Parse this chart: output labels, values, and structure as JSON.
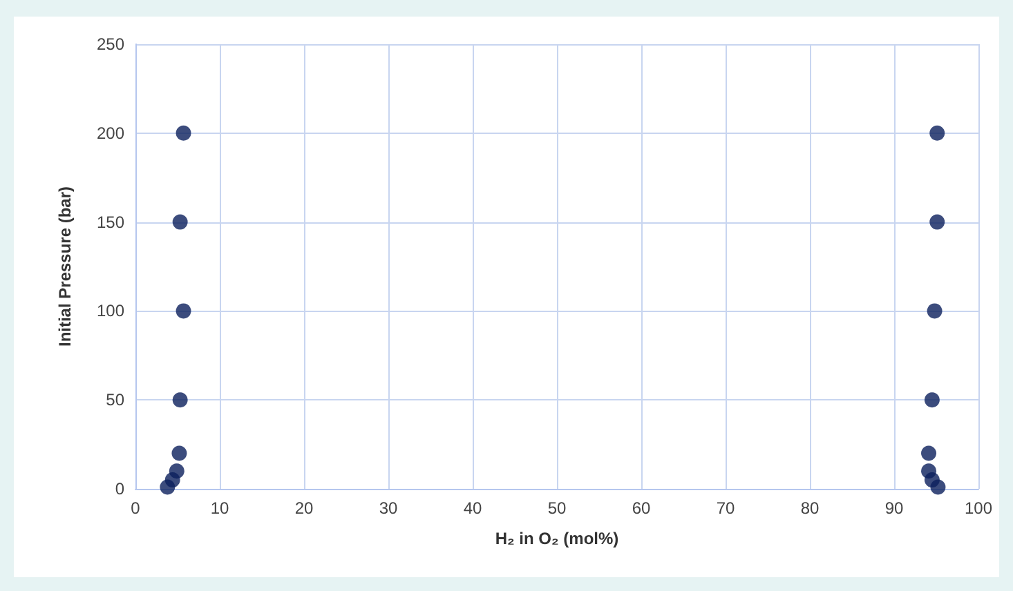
{
  "chart_data": {
    "type": "scatter",
    "xlabel": "H₂ in O₂ (mol%)",
    "ylabel": "Initial Pressure (bar)",
    "x": [
      3.8,
      4.4,
      4.9,
      5.2,
      5.3,
      5.7,
      5.3,
      5.7,
      95.2,
      94.5,
      94.1,
      94.1,
      94.5,
      94.8,
      95.1,
      95.1
    ],
    "values": [
      1,
      5,
      10,
      20,
      50,
      100,
      150,
      200,
      1,
      5,
      10,
      20,
      50,
      100,
      150,
      200
    ],
    "color": "#0b1f5c",
    "marker": "circle",
    "grid": true,
    "xlim": [
      0,
      100
    ],
    "xticks": [
      0,
      10,
      20,
      30,
      40,
      50,
      60,
      70,
      80,
      90,
      100
    ],
    "ylim": [
      0,
      250
    ],
    "yticks": [
      0,
      50,
      100,
      150,
      200,
      250
    ]
  }
}
